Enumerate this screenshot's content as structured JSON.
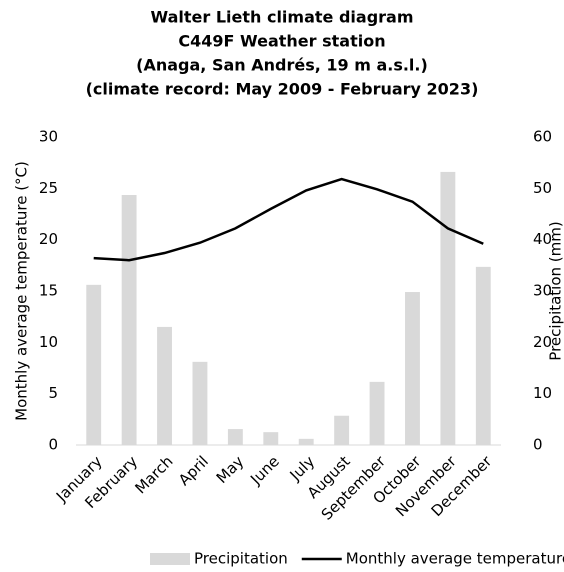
{
  "chart_data": {
    "type": "bar_line",
    "title": [
      "Walter Lieth climate diagram",
      "C449F Weather station",
      "(Anaga, San Andrés, 19 m a.s.l.)",
      "(climate record: May 2009 - February 2023)"
    ],
    "categories": [
      "January",
      "February",
      "March",
      "April",
      "May",
      "June",
      "July",
      "August",
      "September",
      "October",
      "November",
      "December"
    ],
    "series": [
      {
        "name": "Precipitation",
        "type": "bar",
        "axis": "y2",
        "color": "#d9d9d9",
        "values": [
          31.2,
          48.7,
          23.0,
          16.2,
          3.1,
          2.5,
          1.2,
          5.7,
          12.3,
          29.8,
          53.2,
          34.7
        ]
      },
      {
        "name": "Monthly average temperature",
        "type": "line",
        "axis": "y",
        "color": "#000000",
        "values": [
          18.2,
          18.0,
          18.7,
          19.7,
          21.1,
          23.0,
          24.8,
          25.9,
          24.9,
          23.7,
          21.1,
          19.6
        ]
      }
    ],
    "ylabel": "Monthly average temperature (°C)",
    "y2label": "Precipitation (mm)",
    "ylim": [
      0,
      30
    ],
    "yticks": [
      0,
      5,
      10,
      15,
      20,
      25,
      30
    ],
    "y2lim": [
      0,
      60
    ],
    "y2ticks": [
      0,
      10,
      20,
      30,
      40,
      50,
      60
    ],
    "legend": "bottom"
  }
}
